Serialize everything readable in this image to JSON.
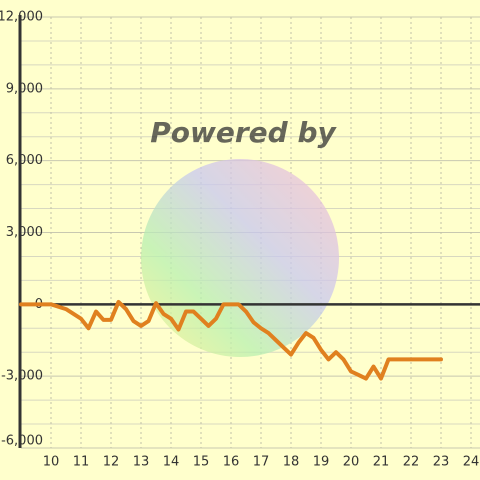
{
  "chart_data": {
    "type": "line",
    "watermark": "Powered by",
    "x": [
      9.0,
      10.0,
      10.5,
      11.0,
      11.25,
      11.5,
      11.75,
      12.0,
      12.25,
      12.5,
      12.75,
      13.0,
      13.25,
      13.5,
      13.75,
      14.0,
      14.25,
      14.5,
      14.75,
      15.0,
      15.25,
      15.5,
      15.75,
      16.0,
      16.25,
      16.5,
      16.75,
      17.0,
      17.25,
      17.5,
      17.75,
      18.0,
      18.25,
      18.5,
      18.75,
      19.0,
      19.25,
      19.5,
      19.75,
      20.0,
      20.25,
      20.5,
      20.75,
      21.0,
      21.25,
      21.5,
      22.0,
      22.5,
      23.0
    ],
    "series": [
      {
        "color": "#e0801f",
        "values": [
          0,
          0,
          -200,
          -600,
          -1000,
          -300,
          -650,
          -650,
          100,
          -200,
          -700,
          -900,
          -700,
          50,
          -400,
          -600,
          -1050,
          -300,
          -300,
          -600,
          -900,
          -600,
          0,
          0,
          0,
          -300,
          -750,
          -1000,
          -1200,
          -1500,
          -1800,
          -2100,
          -1600,
          -1200,
          -1400,
          -1900,
          -2300,
          -2000,
          -2300,
          -2800,
          -2950,
          -3100,
          -2600,
          -3100,
          -2300,
          -2300,
          -2300,
          -2300,
          -2300
        ]
      }
    ],
    "xlim": [
      9,
      24.3
    ],
    "xticks": [
      10,
      11,
      12,
      13,
      14,
      15,
      16,
      17,
      18,
      19,
      20,
      21,
      22,
      23,
      24
    ],
    "ylim": [
      -6000,
      12000
    ],
    "yticks": [
      {
        "value": -6000,
        "label": "-6,000"
      },
      {
        "value": -3000,
        "label": "-3,000"
      },
      0,
      {
        "value": 3000,
        "label": "3,000"
      },
      {
        "value": 6000,
        "label": "6,000"
      },
      {
        "value": 9000,
        "label": "9,000"
      },
      {
        "value": 12000,
        "label": "12,000"
      }
    ],
    "grid": true
  }
}
